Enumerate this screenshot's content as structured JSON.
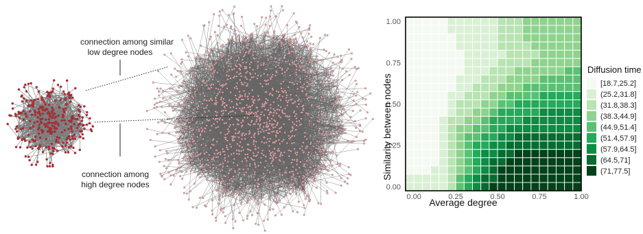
{
  "annotations": {
    "low_degree": [
      "connection among similar",
      "low degree nodes"
    ],
    "high_degree": [
      "connection among",
      "high degree nodes"
    ]
  },
  "network_colors": {
    "edge": "#666666",
    "small_node": "#c0202a",
    "large_node": "#f2a7aa"
  },
  "chart_data": {
    "type": "heatmap",
    "xlabel": "Average degree",
    "ylabel": "Similarity between nodes",
    "xlim": [
      -0.05,
      1.0
    ],
    "ylim": [
      -0.025,
      1.025
    ],
    "x_ticks": [
      "0.00",
      "0.25",
      "0.50",
      "0.75",
      "1.00"
    ],
    "y_ticks": [
      "0.00",
      "0.25",
      "0.50",
      "0.75",
      "1.00"
    ],
    "grid": false,
    "legend": {
      "title": "Diffusion time",
      "placement": "right",
      "bins": [
        {
          "label": "[18.7,25.2]",
          "color": "#f4faf2"
        },
        {
          "label": "(25.2,31.8]",
          "color": "#daf0d5"
        },
        {
          "label": "(31.8,38.3]",
          "color": "#b8e3b2"
        },
        {
          "label": "(38.3,44.9]",
          "color": "#8fd38e"
        },
        {
          "label": "(44.9,51.4]",
          "color": "#5cc073"
        },
        {
          "label": "(51.4,57.9]",
          "color": "#26a95a"
        },
        {
          "label": "(57.9,64.5]",
          "color": "#0d8c43"
        },
        {
          "label": "(64.5,71]",
          "color": "#076c30"
        },
        {
          "label": "(71,77.5]",
          "color": "#02421b"
        }
      ]
    },
    "cells": {
      "x_values": [
        -0.025,
        0.025,
        0.075,
        0.125,
        0.175,
        0.225,
        0.275,
        0.325,
        0.375,
        0.425,
        0.475,
        0.525,
        0.575,
        0.625,
        0.675,
        0.725,
        0.775,
        0.825,
        0.875,
        0.925,
        0.975
      ],
      "y_values": [
        1.0,
        0.95,
        0.9,
        0.85,
        0.8,
        0.75,
        0.7,
        0.65,
        0.6,
        0.55,
        0.5,
        0.45,
        0.4,
        0.35,
        0.3,
        0.25,
        0.2,
        0.15,
        0.1,
        0.05,
        0.0
      ],
      "bin_index_rows": [
        [
          0,
          0,
          0,
          0,
          0,
          1,
          1,
          1,
          1,
          1,
          1,
          2,
          2,
          2,
          3,
          3,
          3,
          3,
          3,
          3,
          3
        ],
        [
          0,
          0,
          0,
          0,
          0,
          1,
          1,
          1,
          1,
          1,
          1,
          2,
          2,
          2,
          3,
          3,
          3,
          3,
          3,
          3,
          3
        ],
        [
          0,
          0,
          0,
          0,
          0,
          0,
          1,
          1,
          1,
          1,
          1,
          2,
          2,
          2,
          3,
          3,
          3,
          3,
          3,
          3,
          3
        ],
        [
          0,
          0,
          0,
          0,
          0,
          0,
          1,
          1,
          1,
          1,
          1,
          2,
          2,
          2,
          2,
          3,
          3,
          3,
          3,
          3,
          3
        ],
        [
          0,
          0,
          0,
          0,
          0,
          0,
          0,
          1,
          1,
          1,
          1,
          1,
          2,
          2,
          2,
          2,
          3,
          3,
          3,
          3,
          3
        ],
        [
          0,
          0,
          0,
          0,
          0,
          0,
          0,
          1,
          1,
          1,
          1,
          2,
          2,
          2,
          2,
          3,
          3,
          3,
          3,
          3,
          3
        ],
        [
          0,
          0,
          0,
          0,
          0,
          0,
          0,
          1,
          1,
          1,
          2,
          2,
          2,
          3,
          3,
          3,
          3,
          3,
          3,
          4,
          4
        ],
        [
          0,
          0,
          0,
          0,
          0,
          0,
          1,
          1,
          1,
          2,
          2,
          2,
          3,
          3,
          3,
          3,
          4,
          4,
          4,
          4,
          4
        ],
        [
          0,
          0,
          0,
          0,
          0,
          0,
          1,
          1,
          2,
          2,
          2,
          3,
          3,
          3,
          4,
          4,
          4,
          4,
          4,
          4,
          4
        ],
        [
          0,
          0,
          0,
          0,
          0,
          1,
          1,
          2,
          2,
          2,
          3,
          3,
          4,
          4,
          4,
          4,
          5,
          5,
          5,
          5,
          5
        ],
        [
          0,
          0,
          0,
          0,
          0,
          1,
          2,
          2,
          2,
          3,
          3,
          4,
          4,
          5,
          5,
          5,
          5,
          5,
          5,
          5,
          5
        ],
        [
          0,
          0,
          0,
          0,
          0,
          1,
          2,
          2,
          3,
          3,
          4,
          5,
          5,
          5,
          5,
          5,
          6,
          6,
          6,
          6,
          6
        ],
        [
          0,
          0,
          0,
          0,
          1,
          2,
          2,
          3,
          3,
          4,
          5,
          5,
          5,
          5,
          6,
          6,
          6,
          6,
          6,
          6,
          6
        ],
        [
          0,
          0,
          0,
          0,
          1,
          2,
          3,
          3,
          4,
          4,
          5,
          5,
          6,
          6,
          6,
          6,
          6,
          6,
          6,
          6,
          6
        ],
        [
          0,
          0,
          0,
          0,
          1,
          2,
          3,
          4,
          4,
          5,
          5,
          6,
          6,
          7,
          7,
          7,
          7,
          7,
          7,
          7,
          7
        ],
        [
          0,
          0,
          0,
          0,
          1,
          2,
          3,
          4,
          5,
          5,
          6,
          6,
          7,
          7,
          7,
          7,
          7,
          7,
          7,
          7,
          7
        ],
        [
          0,
          0,
          0,
          0,
          1,
          2,
          3,
          4,
          5,
          6,
          6,
          7,
          7,
          8,
          8,
          8,
          8,
          8,
          8,
          8,
          8
        ],
        [
          0,
          0,
          0,
          0,
          1,
          2,
          3,
          4,
          5,
          6,
          7,
          7,
          8,
          8,
          8,
          8,
          8,
          8,
          8,
          8,
          8
        ],
        [
          0,
          0,
          0,
          1,
          1,
          2,
          3,
          4,
          5,
          6,
          7,
          8,
          8,
          8,
          8,
          8,
          8,
          8,
          8,
          8,
          8
        ],
        [
          1,
          1,
          1,
          1,
          1,
          2,
          4,
          5,
          6,
          7,
          7,
          8,
          8,
          8,
          8,
          8,
          8,
          8,
          8,
          8,
          8
        ],
        [
          1,
          1,
          1,
          1,
          1,
          2,
          4,
          5,
          6,
          7,
          8,
          8,
          8,
          8,
          8,
          8,
          8,
          8,
          8,
          8,
          8
        ]
      ]
    }
  }
}
